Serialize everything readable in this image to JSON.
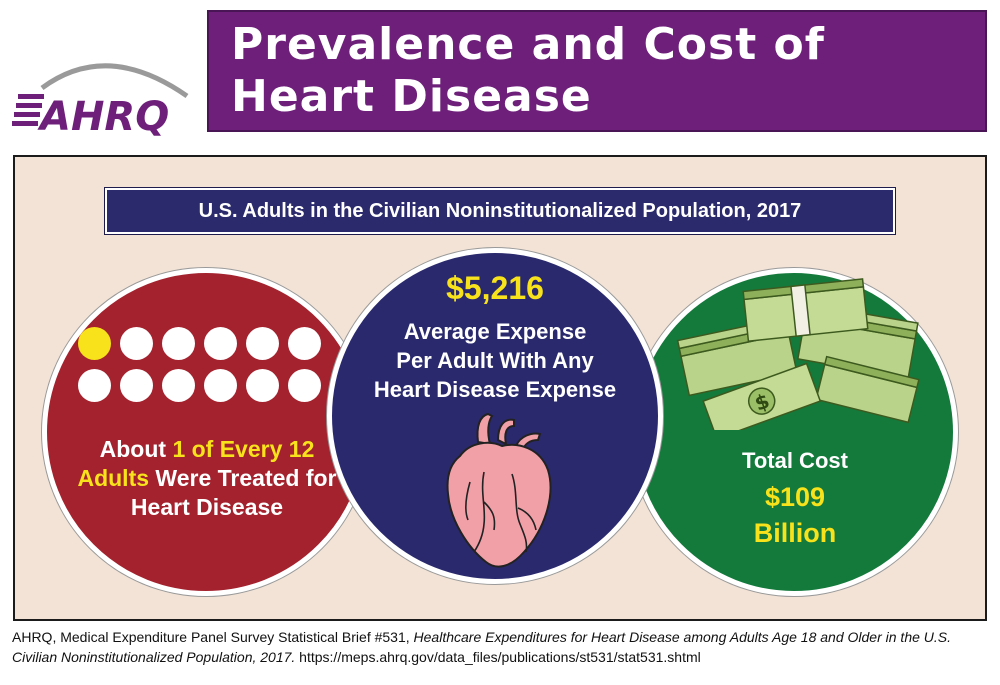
{
  "header": {
    "logo_text": "AHRQ",
    "title_line1": "Prevalence and Cost of",
    "title_line2": "Heart Disease"
  },
  "subtitle": "U.S. Adults in the Civilian Noninstitutionalized Population, 2017",
  "prevalence": {
    "dots_total": 12,
    "dots_highlighted": 1,
    "text_pre": "About ",
    "text_highlight": "1 of Every 12 Adults",
    "text_post": " Were Treated for Heart Disease"
  },
  "expense": {
    "amount": "$5,216",
    "label_line1": "Average Expense",
    "label_line2": "Per Adult With Any",
    "label_line3": "Heart Disease Expense"
  },
  "total": {
    "label": "Total Cost",
    "amount": "$109",
    "unit": "Billion"
  },
  "citation": {
    "prefix": "AHRQ, Medical Expenditure Panel Survey Statistical Brief #531, ",
    "title": "Healthcare Expenditures for Heart Disease among Adults Age 18 and Older in the U.S. Civilian Noninstitutionalized Population, 2017.",
    "url": " https://meps.ahrq.gov/data_files/publications/st531/stat531.shtml"
  },
  "colors": {
    "title_bg": "#6d1f7a",
    "subtitle_bg": "#2b2a6c",
    "red_circle": "#a3222e",
    "blue_circle": "#2a296d",
    "green_circle": "#137a3c",
    "highlight": "#f7e21b",
    "panel_bg": "#f2e3d6"
  }
}
